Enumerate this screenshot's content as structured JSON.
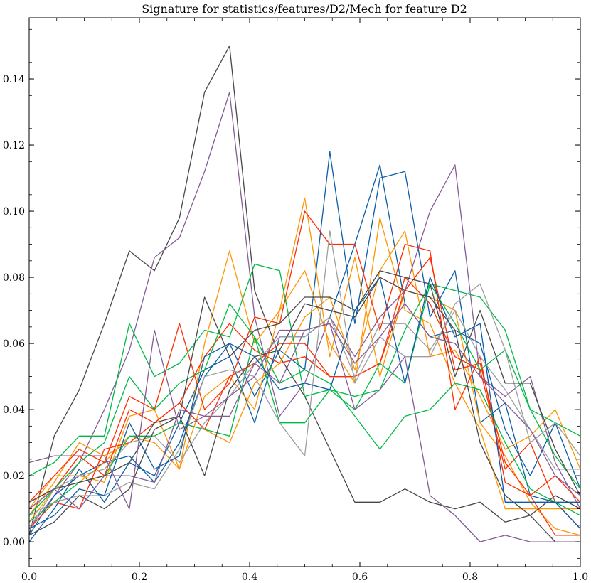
{
  "chart_data": {
    "type": "line",
    "title": "Signature for statistics/features/D2/Mech for feature D2",
    "xlabel": "",
    "ylabel": "",
    "xlim": [
      0.0,
      1.0
    ],
    "ylim": [
      -0.0075,
      0.1585
    ],
    "x_ticks": [
      "0.0",
      "0.2",
      "0.4",
      "0.6",
      "0.8",
      "1.0"
    ],
    "x_tick_values": [
      0.0,
      0.2,
      0.4,
      0.6,
      0.8,
      1.0
    ],
    "y_ticks": [
      "0.00",
      "0.02",
      "0.04",
      "0.06",
      "0.08",
      "0.10",
      "0.12",
      "0.14"
    ],
    "y_tick_values": [
      0.0,
      0.02,
      0.04,
      0.06,
      0.08,
      0.1,
      0.12,
      0.14
    ],
    "grid": false,
    "legend": "none",
    "x": [
      0.0,
      0.0455,
      0.0909,
      0.1364,
      0.1818,
      0.2273,
      0.2727,
      0.3182,
      0.3636,
      0.4091,
      0.4545,
      0.5,
      0.5455,
      0.5909,
      0.6364,
      0.6818,
      0.7273,
      0.7727,
      0.8182,
      0.8636,
      0.9091,
      0.9545,
      1.0
    ],
    "series": [
      {
        "color": "#474747",
        "values": [
          0.002,
          0.032,
          0.046,
          0.066,
          0.088,
          0.082,
          0.098,
          0.136,
          0.15,
          0.076,
          0.056,
          0.044,
          0.028,
          0.012,
          0.012,
          0.016,
          0.012,
          0.01,
          0.012,
          0.006,
          0.008,
          0.0,
          0.0
        ]
      },
      {
        "color": "#845B97",
        "values": [
          0.004,
          0.014,
          0.024,
          0.04,
          0.058,
          0.086,
          0.092,
          0.112,
          0.136,
          0.068,
          0.038,
          0.048,
          0.068,
          0.056,
          0.068,
          0.076,
          0.1,
          0.114,
          0.05,
          0.044,
          0.05,
          0.024,
          0.01
        ]
      },
      {
        "color": "#0C5DA5",
        "values": [
          0.002,
          0.014,
          0.02,
          0.024,
          0.026,
          0.018,
          0.03,
          0.05,
          0.06,
          0.044,
          0.058,
          0.052,
          0.118,
          0.066,
          0.11,
          0.112,
          0.068,
          0.082,
          0.036,
          0.042,
          0.014,
          0.012,
          0.012
        ]
      },
      {
        "color": "#0C5DA5",
        "values": [
          0.0,
          0.01,
          0.022,
          0.012,
          0.024,
          0.02,
          0.036,
          0.052,
          0.056,
          0.036,
          0.062,
          0.062,
          0.068,
          0.09,
          0.114,
          0.072,
          0.062,
          0.064,
          0.06,
          0.034,
          0.02,
          0.036,
          0.016
        ]
      },
      {
        "color": "#FF9500",
        "values": [
          0.006,
          0.016,
          0.018,
          0.024,
          0.032,
          0.03,
          0.022,
          0.06,
          0.088,
          0.06,
          0.07,
          0.104,
          0.056,
          0.086,
          0.05,
          0.076,
          0.074,
          0.07,
          0.036,
          0.026,
          0.012,
          0.004,
          0.002
        ]
      },
      {
        "color": "#FF9500",
        "values": [
          0.01,
          0.02,
          0.02,
          0.018,
          0.038,
          0.04,
          0.022,
          0.044,
          0.05,
          0.04,
          0.07,
          0.082,
          0.06,
          0.048,
          0.098,
          0.07,
          0.066,
          0.048,
          0.034,
          0.01,
          0.01,
          0.01,
          0.01
        ]
      },
      {
        "color": "#FF9500",
        "values": [
          0.008,
          0.018,
          0.03,
          0.026,
          0.03,
          0.032,
          0.036,
          0.034,
          0.03,
          0.048,
          0.054,
          0.068,
          0.074,
          0.052,
          0.082,
          0.094,
          0.056,
          0.058,
          0.044,
          0.028,
          0.032,
          0.04,
          0.022
        ]
      },
      {
        "color": "#FF2C00",
        "values": [
          0.012,
          0.02,
          0.028,
          0.024,
          0.044,
          0.04,
          0.066,
          0.04,
          0.048,
          0.068,
          0.066,
          0.1,
          0.09,
          0.09,
          0.064,
          0.09,
          0.088,
          0.04,
          0.056,
          0.018,
          0.014,
          0.002,
          0.002
        ]
      },
      {
        "color": "#FF2C00",
        "values": [
          0.004,
          0.012,
          0.01,
          0.028,
          0.03,
          0.036,
          0.042,
          0.034,
          0.05,
          0.054,
          0.06,
          0.06,
          0.05,
          0.05,
          0.054,
          0.076,
          0.086,
          0.052,
          0.054,
          0.024,
          0.014,
          0.02,
          0.012
        ]
      },
      {
        "color": "#FF2C00",
        "values": [
          0.012,
          0.016,
          0.026,
          0.02,
          0.04,
          0.036,
          0.042,
          0.056,
          0.066,
          0.058,
          0.054,
          0.056,
          0.05,
          0.05,
          0.054,
          0.08,
          0.072,
          0.056,
          0.052,
          0.022,
          0.03,
          0.012,
          0.004
        ]
      },
      {
        "color": "#00B945",
        "values": [
          0.02,
          0.024,
          0.032,
          0.032,
          0.066,
          0.05,
          0.054,
          0.064,
          0.062,
          0.084,
          0.082,
          0.044,
          0.046,
          0.044,
          0.046,
          0.064,
          0.078,
          0.076,
          0.074,
          0.064,
          0.04,
          0.036,
          0.032
        ]
      },
      {
        "color": "#00B945",
        "values": [
          0.008,
          0.016,
          0.024,
          0.03,
          0.05,
          0.04,
          0.048,
          0.052,
          0.072,
          0.062,
          0.036,
          0.036,
          0.046,
          0.04,
          0.054,
          0.048,
          0.078,
          0.066,
          0.052,
          0.058,
          0.04,
          0.026,
          0.016
        ]
      },
      {
        "color": "#00B945",
        "values": [
          0.006,
          0.012,
          0.018,
          0.02,
          0.032,
          0.032,
          0.036,
          0.034,
          0.032,
          0.062,
          0.048,
          0.052,
          0.048,
          0.038,
          0.028,
          0.038,
          0.04,
          0.048,
          0.046,
          0.03,
          0.016,
          0.012,
          0.008
        ]
      },
      {
        "color": "#9E9E9E",
        "values": [
          0.008,
          0.012,
          0.014,
          0.014,
          0.018,
          0.016,
          0.028,
          0.05,
          0.052,
          0.05,
          0.036,
          0.026,
          0.094,
          0.048,
          0.062,
          0.056,
          0.056,
          0.072,
          0.078,
          0.058,
          0.03,
          0.036,
          0.026
        ]
      },
      {
        "color": "#9E9E9E",
        "values": [
          0.004,
          0.016,
          0.02,
          0.022,
          0.03,
          0.032,
          0.024,
          0.036,
          0.044,
          0.054,
          0.062,
          0.062,
          0.068,
          0.05,
          0.066,
          0.066,
          0.058,
          0.07,
          0.056,
          0.046,
          0.034,
          0.022,
          0.022
        ]
      },
      {
        "color": "#474747",
        "values": [
          0.002,
          0.006,
          0.014,
          0.01,
          0.016,
          0.034,
          0.038,
          0.074,
          0.056,
          0.064,
          0.066,
          0.074,
          0.074,
          0.07,
          0.082,
          0.08,
          0.078,
          0.05,
          0.07,
          0.048,
          0.048,
          0.028,
          0.014
        ]
      },
      {
        "color": "#474747",
        "values": [
          0.012,
          0.016,
          0.018,
          0.02,
          0.024,
          0.036,
          0.038,
          0.02,
          0.046,
          0.056,
          0.058,
          0.072,
          0.07,
          0.068,
          0.08,
          0.076,
          0.074,
          0.064,
          0.03,
          0.014,
          0.008,
          0.014,
          0.01
        ]
      },
      {
        "color": "#845B97",
        "values": [
          0.024,
          0.026,
          0.026,
          0.026,
          0.01,
          0.064,
          0.034,
          0.038,
          0.038,
          0.054,
          0.048,
          0.064,
          0.066,
          0.04,
          0.046,
          0.056,
          0.014,
          0.008,
          0.0,
          0.002,
          0.0,
          0.0,
          0.0
        ]
      },
      {
        "color": "#845B97",
        "values": [
          0.01,
          0.016,
          0.01,
          0.02,
          0.02,
          0.018,
          0.04,
          0.038,
          0.044,
          0.05,
          0.064,
          0.064,
          0.066,
          0.054,
          0.062,
          0.072,
          0.062,
          0.06,
          0.05,
          0.042,
          0.034,
          0.02,
          0.014
        ]
      },
      {
        "color": "#0C5DA5",
        "values": [
          0.004,
          0.008,
          0.016,
          0.014,
          0.036,
          0.022,
          0.026,
          0.056,
          0.06,
          0.056,
          0.046,
          0.048,
          0.046,
          0.07,
          0.08,
          0.048,
          0.08,
          0.062,
          0.066,
          0.012,
          0.012,
          0.012,
          0.004
        ]
      }
    ]
  }
}
